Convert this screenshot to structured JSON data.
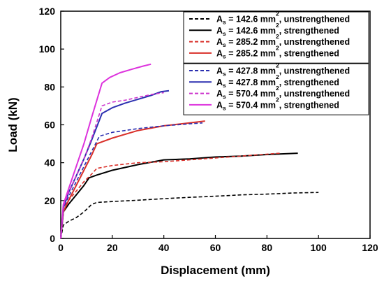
{
  "chart_data": {
    "type": "line",
    "xlabel": "Displacement (mm)",
    "ylabel": "Load (kN)",
    "xlim": [
      0,
      120
    ],
    "ylim": [
      0,
      120
    ],
    "xticks": [
      "0",
      "20",
      "40",
      "60",
      "80",
      "100",
      "120"
    ],
    "yticks": [
      "0",
      "20",
      "40",
      "60",
      "80",
      "100",
      "120"
    ],
    "grid": false,
    "legend_placement": "top-right",
    "series": [
      {
        "name_parts": {
          "pre": "A",
          "sub": "s",
          "mid": " = 142.6 mm",
          "sup": "2",
          "post": ", unstrengthened"
        },
        "color": "#000000",
        "dashed": true,
        "x": [
          0,
          1,
          3,
          6,
          9,
          12,
          14,
          20,
          30,
          40,
          50,
          60,
          70,
          80,
          90,
          100
        ],
        "y": [
          0,
          7,
          9,
          11,
          14,
          18,
          19,
          19.5,
          20.2,
          21,
          21.7,
          22.3,
          23,
          23.4,
          24,
          24.3
        ]
      },
      {
        "name_parts": {
          "pre": "A",
          "sub": "s",
          "mid": " = 142.6 mm",
          "sup": "2",
          "post": ", strengthened"
        },
        "color": "#000000",
        "dashed": false,
        "x": [
          0,
          1,
          3,
          6,
          9,
          11,
          14,
          20,
          30,
          40,
          50,
          60,
          70,
          80,
          92
        ],
        "y": [
          0,
          14,
          18,
          23,
          28,
          32,
          33.5,
          36,
          39,
          41.5,
          42,
          43,
          43.5,
          44.3,
          45
        ]
      },
      {
        "name_parts": {
          "pre": "A",
          "sub": "s",
          "mid": " = 285.2 mm",
          "sup": "2",
          "post": ", unstrengthened"
        },
        "color": "#d9302a",
        "dashed": true,
        "x": [
          0,
          1,
          3,
          6,
          9,
          12,
          14,
          20,
          30,
          40,
          50,
          60,
          70,
          85
        ],
        "y": [
          0,
          16,
          20,
          25,
          30,
          34,
          37,
          38.5,
          40,
          40.5,
          41.5,
          42.5,
          43.5,
          45
        ]
      },
      {
        "name_parts": {
          "pre": "A",
          "sub": "s",
          "mid": " = 285.2 mm",
          "sup": "2",
          "post": ", strengthened"
        },
        "color": "#d9302a",
        "dashed": false,
        "x": [
          0,
          1,
          3,
          6,
          9,
          12,
          14,
          20,
          30,
          40,
          50,
          56
        ],
        "y": [
          0,
          14,
          20,
          28,
          36,
          44,
          50,
          53,
          57,
          59.5,
          61,
          62
        ]
      },
      {
        "name_parts": {
          "pre": "A",
          "sub": "s",
          "mid": " = 427.8 mm",
          "sup": "2",
          "post": ", unstrengthened"
        },
        "color": "#2b2fb0",
        "dashed": true,
        "x": [
          0,
          1,
          3,
          6,
          9,
          12,
          15,
          20,
          30,
          40,
          50,
          55
        ],
        "y": [
          0,
          16,
          22,
          30,
          38,
          46,
          54,
          56,
          58,
          59.5,
          60.5,
          61
        ]
      },
      {
        "name_parts": {
          "pre": "A",
          "sub": "s",
          "mid": " = 427.8 mm",
          "sup": "2",
          "post": ", strengthened"
        },
        "color": "#2b2fb0",
        "dashed": false,
        "x": [
          0,
          1,
          3,
          6,
          9,
          12,
          16,
          20,
          25,
          30,
          35,
          39,
          42
        ],
        "y": [
          0,
          16,
          24,
          33,
          42,
          52,
          66,
          69,
          71.5,
          73.5,
          75.5,
          77.5,
          78
        ]
      },
      {
        "name_parts": {
          "pre": "A",
          "sub": "s",
          "mid": " = 570.4 mm",
          "sup": "2",
          "post": ", unstrengthened"
        },
        "color": "#cc33cc",
        "dashed": true,
        "x": [
          0,
          1,
          3,
          6,
          9,
          12,
          16,
          20,
          25,
          30,
          35,
          40
        ],
        "y": [
          0,
          17,
          24,
          33,
          42,
          53,
          70,
          72,
          73,
          74.5,
          76,
          77
        ]
      },
      {
        "name_parts": {
          "pre": "A",
          "sub": "s",
          "mid": " = 570.4 mm",
          "sup": "2",
          "post": ", strengthened"
        },
        "color": "#dd33dd",
        "dashed": false,
        "x": [
          0,
          1,
          3,
          6,
          9,
          12,
          16,
          19,
          23,
          28,
          32,
          35
        ],
        "y": [
          0,
          18,
          26,
          38,
          50,
          64,
          82,
          85,
          87.5,
          89.5,
          91,
          92
        ]
      }
    ],
    "legend_groups": [
      [
        0,
        1,
        2,
        3
      ],
      [
        4,
        5,
        6,
        7
      ]
    ]
  }
}
